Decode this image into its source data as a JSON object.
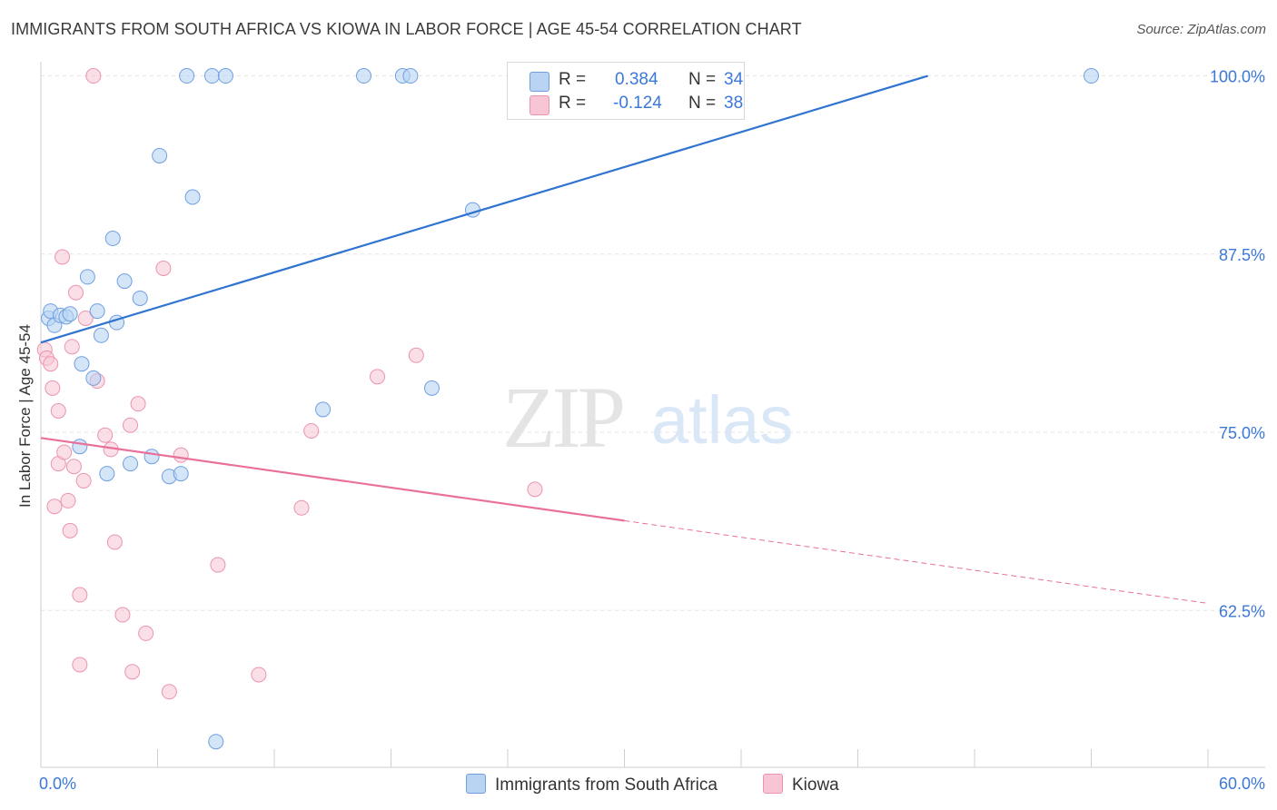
{
  "title": "IMMIGRANTS FROM SOUTH AFRICA VS KIOWA IN LABOR FORCE | AGE 45-54 CORRELATION CHART",
  "source": "Source: ZipAtlas.com",
  "watermark": {
    "zip": "ZIP",
    "atlas": "atlas"
  },
  "legend": {
    "r_label": "R =",
    "n_label": "N =",
    "series": [
      {
        "name": "Immigrants from South Africa",
        "r": "0.384",
        "n": "34"
      },
      {
        "name": "Kiowa",
        "r": "-0.124",
        "n": "38"
      }
    ]
  },
  "colors": {
    "blue_fill": "#b9d3f3",
    "blue_stroke": "#6f9fe0",
    "blue_line": "#2f74d0",
    "pink_fill": "#f8c5d4",
    "pink_stroke": "#ea94b0",
    "pink_line": "#e8709a",
    "grid": "#e3e3e3",
    "axis_text": "#3b78d8"
  },
  "chart_data": {
    "type": "scatter",
    "title": "IMMIGRANTS FROM SOUTH AFRICA VS KIOWA IN LABOR FORCE | AGE 45-54 CORRELATION CHART",
    "xlabel": "",
    "ylabel": "In Labor Force | Age 45-54",
    "xlim": [
      0,
      60
    ],
    "ylim": [
      51.5,
      101.5
    ],
    "x_tick_labels": [
      "0.0%",
      "60.0%"
    ],
    "y_ticks": [
      62.5,
      75.0,
      87.5,
      100.0
    ],
    "y_tick_labels": [
      "62.5%",
      "75.0%",
      "87.5%",
      "100.0%"
    ],
    "series": [
      {
        "name": "Immigrants from South Africa",
        "color": "blue",
        "points": [
          [
            0.4,
            83.0
          ],
          [
            0.5,
            83.5
          ],
          [
            0.7,
            82.5
          ],
          [
            1.0,
            83.2
          ],
          [
            1.3,
            83.1
          ],
          [
            1.5,
            83.3
          ],
          [
            2.0,
            74.0
          ],
          [
            2.1,
            79.8
          ],
          [
            2.4,
            85.9
          ],
          [
            2.7,
            78.8
          ],
          [
            2.9,
            83.5
          ],
          [
            3.1,
            81.8
          ],
          [
            3.4,
            72.1
          ],
          [
            3.7,
            88.6
          ],
          [
            3.9,
            82.7
          ],
          [
            4.3,
            85.6
          ],
          [
            4.6,
            72.8
          ],
          [
            5.1,
            84.4
          ],
          [
            5.7,
            73.3
          ],
          [
            6.1,
            94.4
          ],
          [
            6.6,
            71.9
          ],
          [
            7.2,
            72.1
          ],
          [
            7.8,
            91.5
          ],
          [
            9.0,
            53.3
          ],
          [
            7.5,
            100.0
          ],
          [
            8.8,
            100.0
          ],
          [
            9.5,
            100.0
          ],
          [
            14.5,
            76.6
          ],
          [
            16.6,
            100.0
          ],
          [
            18.6,
            100.0
          ],
          [
            19.0,
            100.0
          ],
          [
            20.1,
            78.1
          ],
          [
            22.2,
            90.6
          ],
          [
            54.0,
            100.0
          ]
        ],
        "trend": {
          "x": [
            0,
            45.6
          ],
          "y": [
            81.3,
            100.0
          ]
        }
      },
      {
        "name": "Kiowa",
        "color": "pink",
        "points": [
          [
            0.2,
            80.8
          ],
          [
            0.3,
            80.2
          ],
          [
            0.5,
            79.8
          ],
          [
            0.6,
            78.1
          ],
          [
            0.7,
            69.8
          ],
          [
            0.9,
            76.5
          ],
          [
            0.9,
            72.8
          ],
          [
            1.1,
            87.3
          ],
          [
            1.2,
            73.6
          ],
          [
            1.4,
            70.2
          ],
          [
            1.5,
            68.1
          ],
          [
            1.6,
            81.0
          ],
          [
            1.7,
            72.6
          ],
          [
            1.8,
            84.8
          ],
          [
            2.0,
            63.6
          ],
          [
            2.0,
            58.7
          ],
          [
            2.2,
            71.6
          ],
          [
            2.3,
            83.0
          ],
          [
            2.7,
            100.0
          ],
          [
            2.9,
            78.6
          ],
          [
            3.3,
            74.8
          ],
          [
            3.6,
            73.8
          ],
          [
            3.8,
            67.3
          ],
          [
            4.2,
            62.2
          ],
          [
            4.6,
            75.5
          ],
          [
            4.7,
            58.2
          ],
          [
            5.0,
            77.0
          ],
          [
            5.4,
            60.9
          ],
          [
            6.3,
            86.5
          ],
          [
            6.6,
            56.8
          ],
          [
            7.2,
            73.4
          ],
          [
            9.1,
            65.7
          ],
          [
            11.2,
            58.0
          ],
          [
            13.4,
            69.7
          ],
          [
            13.9,
            75.1
          ],
          [
            17.3,
            78.9
          ],
          [
            19.3,
            80.4
          ],
          [
            25.4,
            71.0
          ]
        ],
        "trend": {
          "x": [
            0,
            60
          ],
          "y": [
            74.6,
            63.0
          ]
        },
        "trend_solid_until_x": 30
      }
    ]
  }
}
